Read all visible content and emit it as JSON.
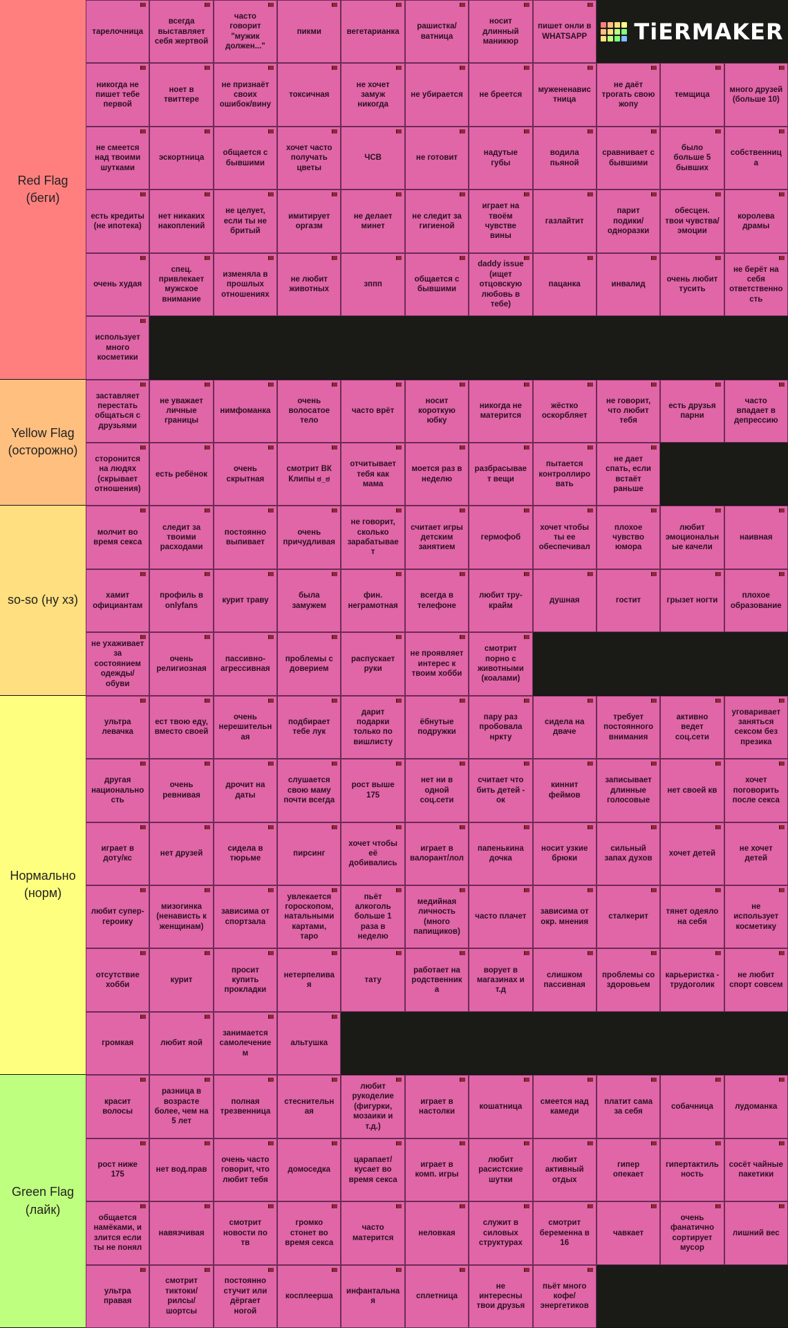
{
  "logo": "TiERMAKER",
  "tiers": [
    {
      "label": "Red Flag (беги)",
      "color": "#ff7f7f",
      "items": [
        "тарелочница",
        "всегда выставляет себя жертвой",
        "часто говорит \"мужик должен...\"",
        "пикми",
        "вегетарианка",
        "рашистка/ватница",
        "носит длинный маникюр",
        "пишет онли в WHATSAPP",
        "никогда не пишет тебе первой",
        "ноет в твиттере",
        "не признаёт своих ошибок/вину",
        "токсичная",
        "не хочет замуж никогда",
        "не убирается",
        "не бреется",
        "мужененавистница",
        "не даёт трогать свою жопу",
        "темщица",
        "много друзей (больше 10)",
        "не смеется над твоими шутками",
        "эскортница",
        "общается с бывшими",
        "хочет часто получать цветы",
        "ЧСВ",
        "не готовит",
        "надутые губы",
        "водила пьяной",
        "сравнивает с бывшими",
        "было больше 5 бывших",
        "собственница",
        "есть кредиты (не ипотека)",
        "нет никаких накоплений",
        "не целует, если ты не бритый",
        "имитирует оргазм",
        "не делает минет",
        "не следит за гигиеной",
        "играет на твоём чувстве вины",
        "газлайтит",
        "парит подики/одноразки",
        "обесцен. твои чувства/эмоции",
        "королева драмы",
        "очень худая",
        "спец. привлекает мужское внимание",
        "изменяла в прошлых отношениях",
        "не любит животных",
        "зппп",
        "общается с бывшими",
        "daddy issue (ищет отцовскую любовь в тебе)",
        "пацанка",
        "инвалид",
        "очень любит тусить",
        "не берёт на себя ответственность",
        "использует много косметики"
      ]
    },
    {
      "label": "Yellow Flag (осторожно)",
      "color": "#ffbf7f",
      "items": [
        "заставляет перестать общаться с друзьями",
        "не уважает личные границы",
        "нимфоманка",
        "очень волосатое тело",
        "часто врёт",
        "носит короткую юбку",
        "никогда не матерится",
        "жёстко оскорбляет",
        "не говорит, что любит тебя",
        "есть друзья парни",
        "часто впадает в депрессию",
        "сторонится на людях (скрывает отношения)",
        "есть ребёнок",
        "очень скрытная",
        "смотрит ВК Клипы ಠ_ಠ",
        "отчитывает тебя как мама",
        "моется раз в неделю",
        "разбрасывает вещи",
        "пытается контроллировать",
        "не дает спать, если встаёт раньше"
      ]
    },
    {
      "label": "so-so (ну хз)",
      "color": "#ffdf7f",
      "items": [
        "молчит во время секса",
        "следит за твоими расходами",
        "постоянно выпивает",
        "очень причудливая",
        "не говорит, сколько зарабатывает",
        "считает игры детским занятием",
        "гермофоб",
        "хочет чтобы ты ее обеспечивал",
        "плохое чувство юмора",
        "любит эмоциональные качели",
        "наивная",
        "хамит официантам",
        "профиль в onlyfans",
        "курит траву",
        "была замужем",
        "фин. неграмотная",
        "всегда в телефоне",
        "любит тру-крайм",
        "душная",
        "гостит",
        "грызет ногти",
        "плохое образование",
        "не ухаживает за состоянием одежды/обуви",
        "очень религиозная",
        "пассивно-агрессивная",
        "проблемы с доверием",
        "распускает руки",
        "не проявляет интерес к твоим хобби",
        "смотрит порно с животными (коалами)"
      ]
    },
    {
      "label": "Нормально (норм)",
      "color": "#ffff7f",
      "items": [
        "ультра левачка",
        "ест твою еду, вместо своей",
        "очень нерешительная",
        "подбирает тебе лук",
        "дарит подарки только по вишлисту",
        "ёбнутые подружки",
        "пару раз пробовала нркту",
        "сидела на дваче",
        "требует постоянного внимания",
        "активно ведет соц.сети",
        "уговаривает заняться сексом без презика",
        "другая национальность",
        "очень ревнивая",
        "дрочит на даты",
        "слушается свою маму почти всегда",
        "рост выше 175",
        "нет ни в одной соц.сети",
        "считает что бить детей - ок",
        "киннит феймов",
        "записывает длинные голосовые",
        "нет своей кв",
        "хочет поговорить после секса",
        "играет в доту/кс",
        "нет друзей",
        "сидела в тюрьме",
        "пирсинг",
        "хочет чтобы её добивались",
        "играет в валорант/лол",
        "папенькина дочка",
        "носит узкие брюки",
        "сильный запах духов",
        "хочет детей",
        "не хочет детей",
        "любит супер-героику",
        "мизогинка (ненависть к женщинам)",
        "зависима от спортзала",
        "увлекается гороскопом, натальными картами, таро",
        "пьёт алкоголь больше 1 раза в неделю",
        "медийная личность (много папищиков)",
        "часто плачет",
        "зависима от окр. мнения",
        "сталкерит",
        "тянет одеяло на себя",
        "не использует косметику",
        "отсутствие хобби",
        "курит",
        "просит купить прокладки",
        "нетерпеливая",
        "тату",
        "работает на родственника",
        "ворует в магазинах и т.д",
        "слишком пассивная",
        "проблемы со здоровьем",
        "карьеристка - трудоголик",
        "не любит спорт совсем",
        "громкая",
        "любит яой",
        "занимается самолечением",
        "альтушка"
      ]
    },
    {
      "label": "Green Flag (лайк)",
      "color": "#bfff7f",
      "items": [
        "красит волосы",
        "разница в возрасте более, чем на 5 лет",
        "полная трезвенница",
        "стеснительная",
        "любит рукоделие (фигурки, мозаики и т.д.)",
        "играет в настолки",
        "кошатница",
        "смеется над камеди",
        "платит сама за себя",
        "собачница",
        "лудоманка",
        "рост ниже 175",
        "нет вод.прав",
        "очень часто говорит, что любит тебя",
        "домоседка",
        "царапает/кусает во время секса",
        "играет в комп. игры",
        "любит расистские шутки",
        "любит активный отдых",
        "гипер опекает",
        "гипертактильность",
        "сосёт чайные пакетики",
        "общается намёками, и злится если ты не понял",
        "навязчивая",
        "смотрит новости по тв",
        "громко стонет во время секса",
        "часто матерится",
        "неловкая",
        "служит в силовых структурах",
        "смотрит беременна в 16",
        "чавкает",
        "очень фанатично сортирует мусор",
        "лишний вес",
        "ультра правая",
        "смотрит тиктоки/рилсы/шортсы",
        "постоянно стучит или дёргает ногой",
        "косплеерша",
        "инфантальная",
        "сплетница",
        "не интересны твои друзья",
        "пьёт много кофе/энергетиков"
      ]
    }
  ]
}
